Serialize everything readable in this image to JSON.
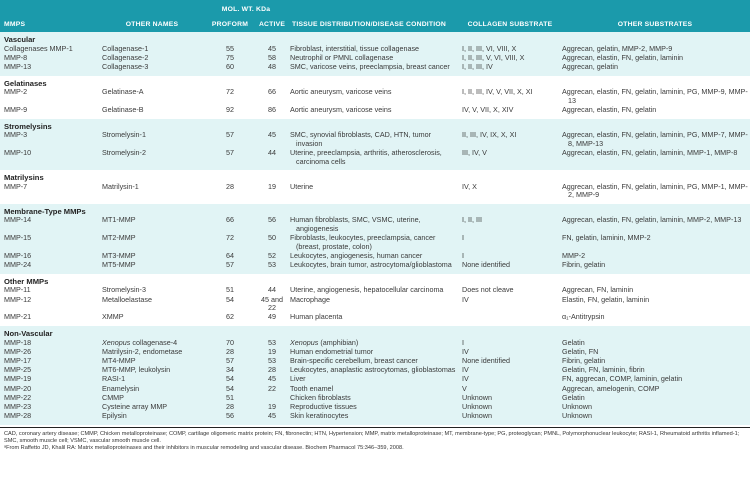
{
  "header": {
    "mol_wt": "MOL. WT. KDa",
    "columns": [
      "MMPS",
      "OTHER NAMES",
      "PROFORM",
      "ACTIVE",
      "TISSUE DISTRIBUTION/DISEASE CONDITION",
      "COLLAGEN SUBSTRATE",
      "OTHER SUBSTRATES"
    ]
  },
  "colors": {
    "header_bg": "#1b9aab",
    "band_bg": "#e1f4f5"
  },
  "sections": [
    {
      "title": "Vascular",
      "shaded": true,
      "rows": [
        [
          "Collagenases MMP-1",
          "Collagenase-1",
          "55",
          "45",
          "Fibroblast, interstitial, tissue collagenase",
          "I, II, III, VI, VIII, X",
          "Aggrecan, gelatin, MMP-2, MMP-9"
        ],
        [
          "MMP-8",
          "Collagenase-2",
          "75",
          "58",
          "Neutrophil or PMNL collagenase",
          "I, II, III, V, VI, VIII, X",
          "Aggrecan, elastin, FN, gelatin, laminin"
        ],
        [
          "MMP-13",
          "Collagenase-3",
          "60",
          "48",
          "SMC, varicose veins, preeclampsia, breast cancer",
          "I, II, III, IV",
          "Aggrecan, gelatin"
        ]
      ]
    },
    {
      "title": "Gelatinases",
      "shaded": false,
      "rows": [
        [
          "MMP-2",
          "Gelatinase-A",
          "72",
          "66",
          "Aortic aneurysm, varicose veins",
          "I, II, III, IV, V, VII, X, XI",
          "Aggrecan, elastin, FN, gelatin, laminin, PG, MMP-9, MMP-13"
        ],
        [
          "MMP-9",
          "Gelatinase-B",
          "92",
          "86",
          "Aortic aneurysm, varicose veins",
          "IV, V, VII, X, XIV",
          "Aggrecan, elastin, FN, gelatin"
        ]
      ]
    },
    {
      "title": "Stromelysins",
      "shaded": true,
      "rows": [
        [
          "MMP-3",
          "Stromelysin-1",
          "57",
          "45",
          "SMC, synovial fibroblasts, CAD, HTN, tumor invasion",
          "II, III, IV, IX, X, XI",
          "Aggrecan, elastin, FN, gelatin, laminin, PG, MMP-7, MMP-8, MMP-13"
        ],
        [
          "MMP-10",
          "Stromelysin-2",
          "57",
          "44",
          "Uterine, preeclampsia, arthritis, atherosclerosis, carcinoma cells",
          "III, IV, V",
          "Aggrecan, elastin, FN, gelatin, laminin, MMP-1, MMP-8"
        ]
      ]
    },
    {
      "title": "Matrilysins",
      "shaded": false,
      "rows": [
        [
          "MMP-7",
          "Matrilysin-1",
          "28",
          "19",
          "Uterine",
          "IV, X",
          "Aggrecan, elastin, FN, gelatin, laminin, PG, MMP-1, MMP-2, MMP-9"
        ]
      ]
    },
    {
      "title": "Membrane-Type MMPs",
      "shaded": true,
      "rows": [
        [
          "MMP-14",
          "MT1-MMP",
          "66",
          "56",
          "Human fibroblasts, SMC, VSMC, uterine, angiogenesis",
          "I, II, III",
          "Aggrecan, elastin, FN, gelatin, laminin, MMP-2, MMP-13"
        ],
        [
          "MMP-15",
          "MT2-MMP",
          "72",
          "50",
          "Fibroblasts, leukocytes, preeclampsia, cancer (breast, prostate, colon)",
          "I",
          "FN, gelatin, laminin, MMP-2"
        ],
        [
          "MMP-16",
          "MT3-MMP",
          "64",
          "52",
          "Leukocytes, angiogenesis, human cancer",
          "I",
          "MMP-2"
        ],
        [
          "MMP-24",
          "MT5-MMP",
          "57",
          "53",
          "Leukocytes, brain tumor, astrocytoma/glioblastoma",
          "None identified",
          "Fibrin, gelatin"
        ]
      ]
    },
    {
      "title": "Other MMPs",
      "shaded": false,
      "rows": [
        [
          "MMP-11",
          "Stromelysin-3",
          "51",
          "44",
          "Uterine, angiogenesis, hepatocellular carcinoma",
          "Does not cleave",
          "Aggrecan, FN, laminin"
        ],
        [
          "MMP-12",
          "Metalloelastase",
          "54",
          "45 and 22",
          "Macrophage",
          "IV",
          "Elastin, FN, gelatin, laminin"
        ],
        [
          "MMP-21",
          "XMMP",
          "62",
          "49",
          "Human placenta",
          "",
          "α₁-Antitrypsin"
        ]
      ]
    },
    {
      "title": "Non-Vascular",
      "shaded": true,
      "rows": [
        [
          "MMP-18",
          "Xenopus collagenase-4",
          "70",
          "53",
          "Xenopus (amphibian)",
          "I",
          "Gelatin"
        ],
        [
          "MMP-26",
          "Matrilysin-2, endometase",
          "28",
          "19",
          "Human endometrial tumor",
          "IV",
          "Gelatin, FN"
        ],
        [
          "MMP-17",
          "MT4-MMP",
          "57",
          "53",
          "Brain-specific cerebellum, breast cancer",
          "None identified",
          "Fibrin, gelatin"
        ],
        [
          "MMP-25",
          "MT6-MMP, leukolysin",
          "34",
          "28",
          "Leukocytes, anaplastic astrocytomas, glioblastomas",
          "IV",
          "Gelatin, FN, laminin, fibrin"
        ],
        [
          "MMP-19",
          "RASI-1",
          "54",
          "45",
          "Liver",
          "IV",
          "FN, aggrecan, COMP, laminin, gelatin"
        ],
        [
          "MMP-20",
          "Enamelysin",
          "54",
          "22",
          "Tooth enamel",
          "V",
          "Aggrecan, amelogenin, COMP"
        ],
        [
          "MMP-22",
          "CMMP",
          "51",
          "",
          "Chicken fibroblasts",
          "Unknown",
          "Gelatin"
        ],
        [
          "MMP-23",
          "Cysteine array MMP",
          "28",
          "19",
          "Reproductive tissues",
          "Unknown",
          "Unknown"
        ],
        [
          "MMP-28",
          "Epilysin",
          "56",
          "45",
          "Skin keratinocytes",
          "Unknown",
          "Unknown"
        ]
      ]
    }
  ],
  "footer": {
    "abbreviations": "CAD, coronary artery disease; CMMP, Chicken metalloproteinase; COMP, cartilage oligomeric matrix protein; FN, fibronectin; HTN, Hypertension; MMP, matrix metalloproteinase; MT, membrane-type; PG, proteoglycan; PMNL, Polymorphonuclear leukocyte; RASI-1, Rheumatoid arthritis inflamed-1; SMC, smooth muscle cell; VSMC, vascular smooth muscle cell.",
    "source": "ᵃFrom Raffetto JD, Khalil RA: Matrix metalloproteinases and their inhibitors in muscular remodeling and vascular disease. Biochem Pharmacol 75:346–359, 2008."
  }
}
